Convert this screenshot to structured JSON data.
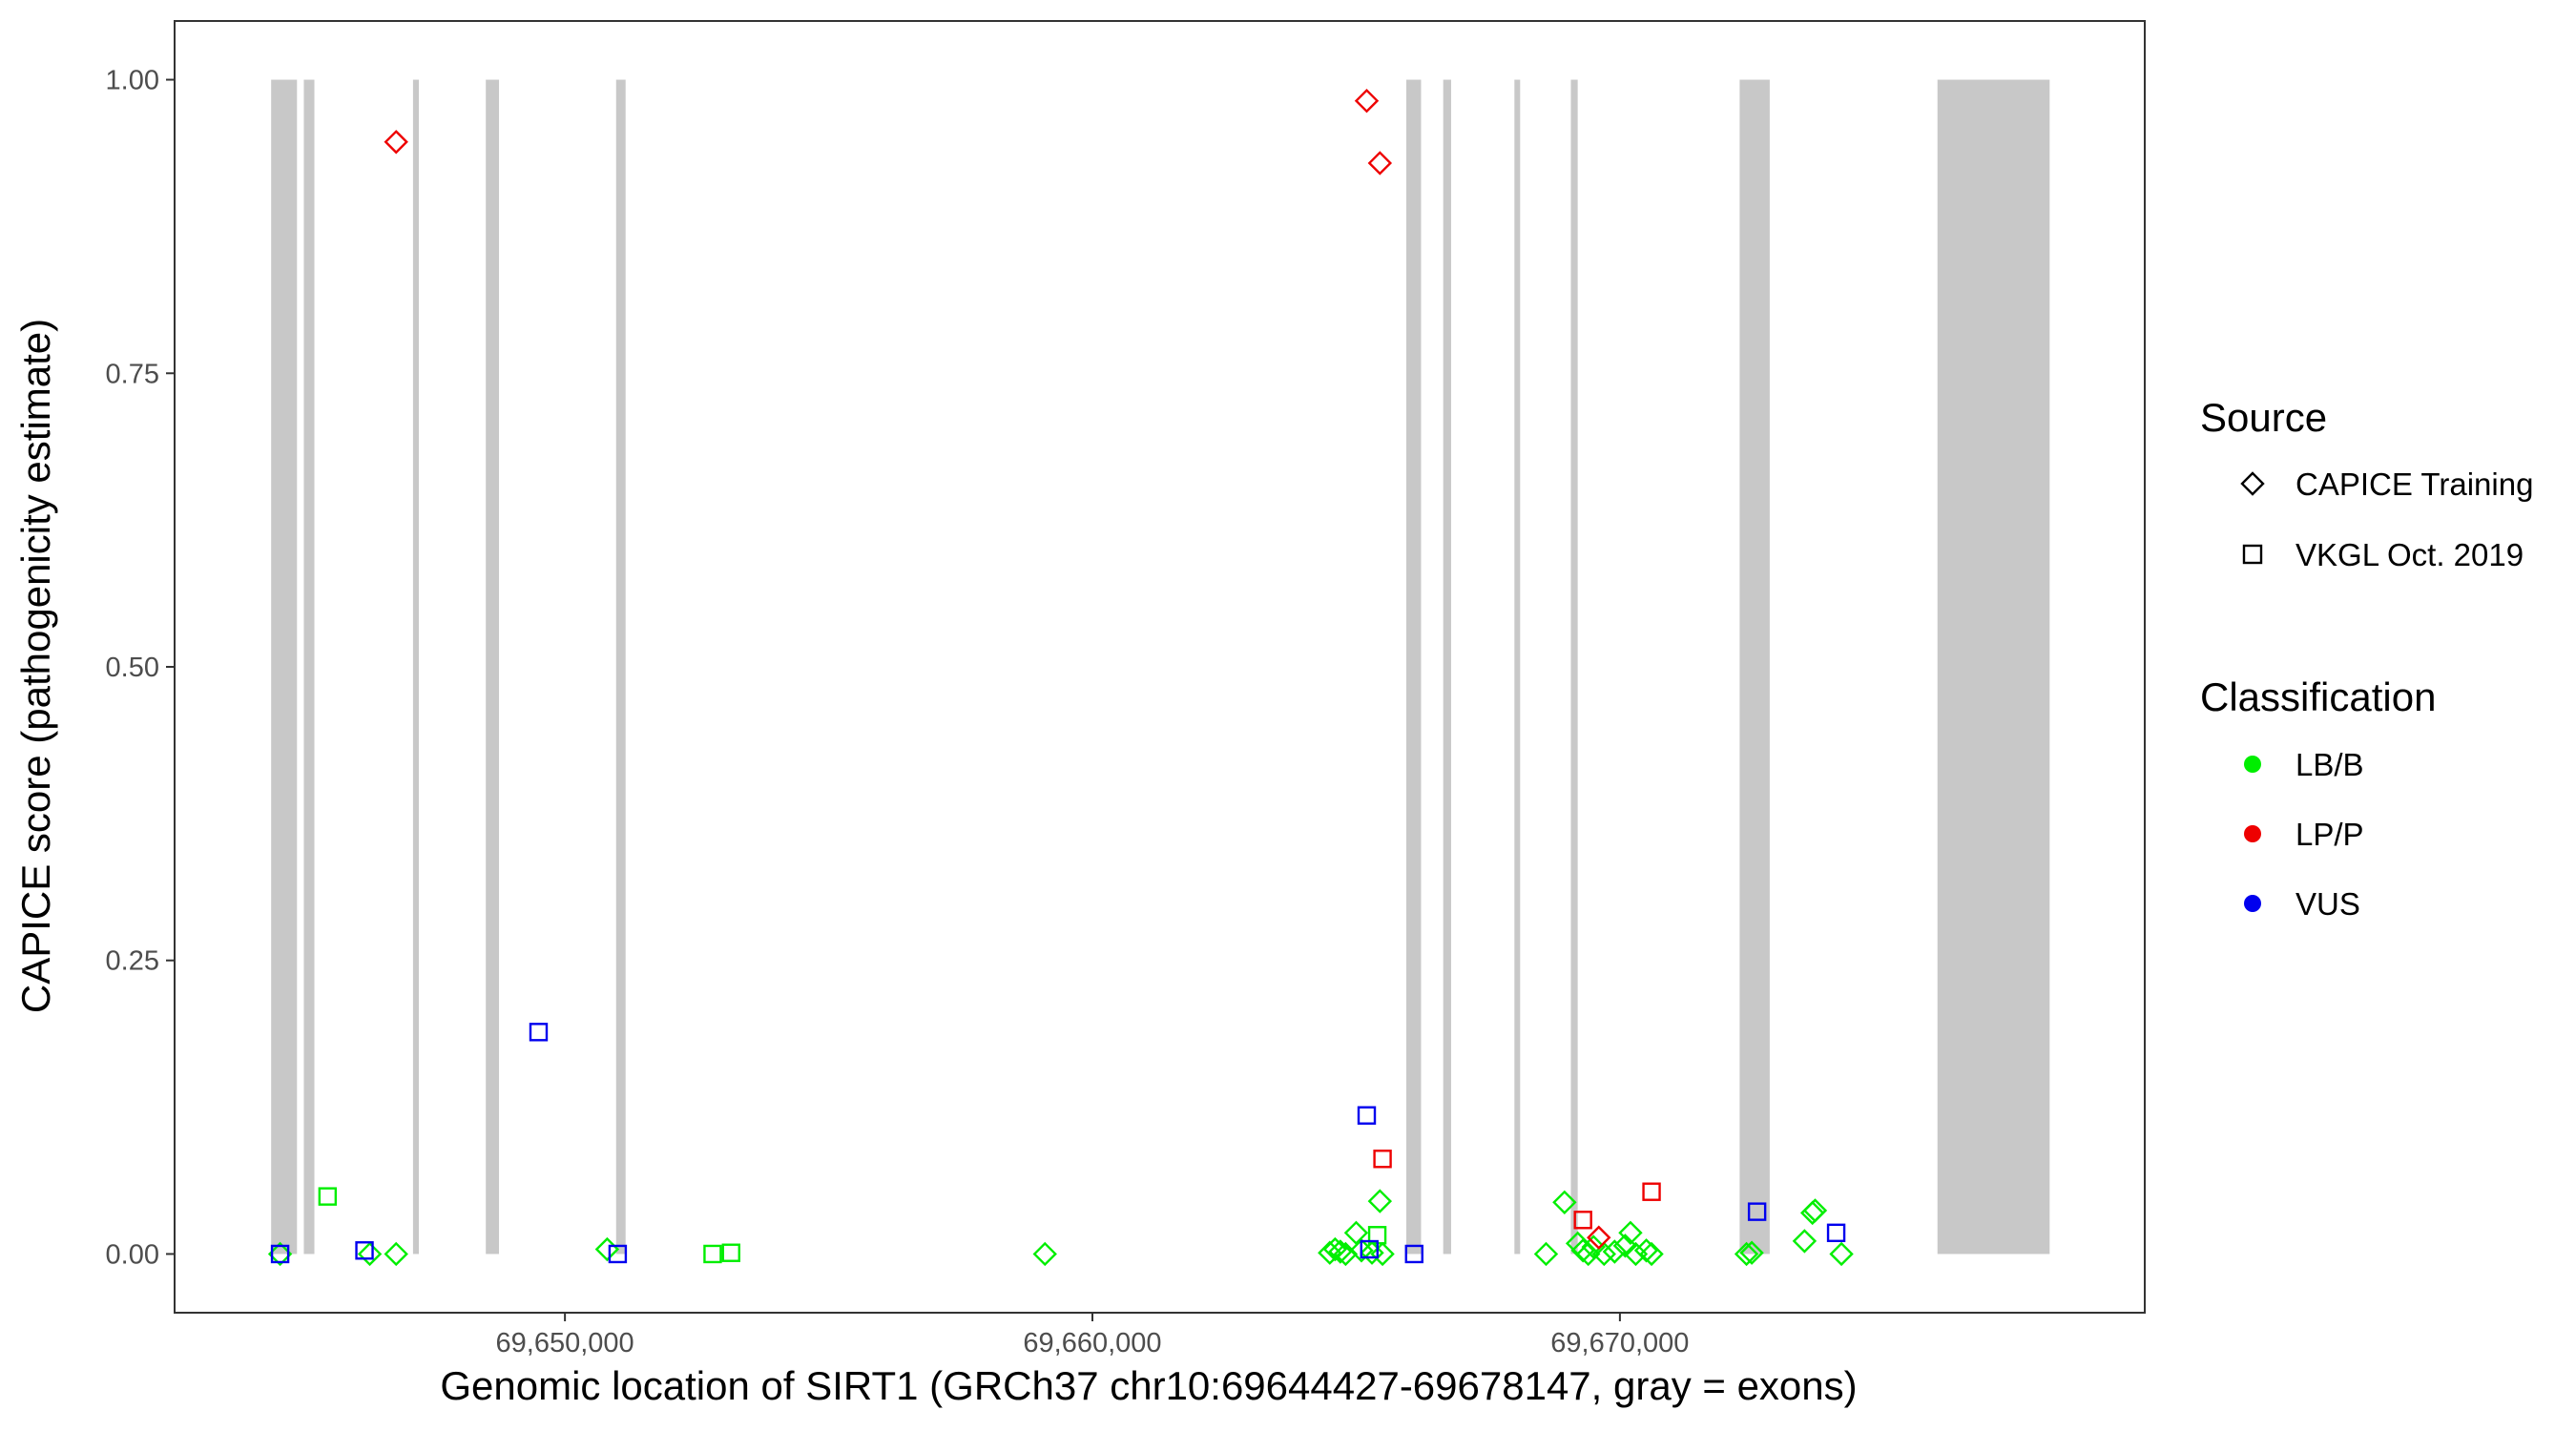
{
  "chart_data": {
    "type": "scatter",
    "title": "",
    "xlabel": "Genomic location of SIRT1 (GRCh37 chr10:69644427-69678147, gray = exons)",
    "ylabel": "CAPICE score (pathogenicity estimate)",
    "xlim": [
      69642600,
      69679950
    ],
    "ylim": [
      -0.05,
      1.05
    ],
    "x_ticks": [
      69650000,
      69660000,
      69670000
    ],
    "x_tick_labels": [
      "69,650,000",
      "69,660,000",
      "69,670,000"
    ],
    "y_ticks": [
      0.0,
      0.25,
      0.5,
      0.75,
      1.0
    ],
    "y_tick_labels": [
      "0.00",
      "0.25",
      "0.50",
      "0.75",
      "1.00"
    ],
    "grid": false,
    "legend_position": "right",
    "exon_color": "#c8c8c8",
    "exons": [
      [
        69644430,
        69644920
      ],
      [
        69645050,
        69645250
      ],
      [
        69647120,
        69647230
      ],
      [
        69648500,
        69648750
      ],
      [
        69650970,
        69651150
      ],
      [
        69665950,
        69666230
      ],
      [
        69666650,
        69666800
      ],
      [
        69668000,
        69668080
      ],
      [
        69669070,
        69669200
      ],
      [
        69672270,
        69672840
      ],
      [
        69676020,
        69678147
      ]
    ],
    "legends": {
      "source": {
        "title": "Source",
        "entries": [
          {
            "label": "CAPICE Training",
            "shape": "diamond"
          },
          {
            "label": "VKGL Oct. 2019",
            "shape": "square"
          }
        ]
      },
      "classification": {
        "title": "Classification",
        "entries": [
          {
            "label": "LB/B",
            "color": "#00ee00"
          },
          {
            "label": "LP/P",
            "color": "#ee0000"
          },
          {
            "label": "VUS",
            "color": "#0000ee"
          }
        ]
      }
    },
    "series": [
      {
        "source": "CAPICE Training",
        "classification": "LB/B",
        "shape": "diamond",
        "color": "#00ee00",
        "points": [
          [
            69644600,
            0.0
          ],
          [
            69646300,
            0.0
          ],
          [
            69646800,
            0.0
          ],
          [
            69650800,
            0.004
          ],
          [
            69659100,
            0.0
          ],
          [
            69664500,
            0.001
          ],
          [
            69664600,
            0.004
          ],
          [
            69664700,
            0.002
          ],
          [
            69664800,
            0.0
          ],
          [
            69665000,
            0.018
          ],
          [
            69665100,
            0.003
          ],
          [
            69665300,
            0.001
          ],
          [
            69665450,
            0.045
          ],
          [
            69665500,
            0.0
          ],
          [
            69668600,
            0.0
          ],
          [
            69668950,
            0.044
          ],
          [
            69669200,
            0.009
          ],
          [
            69669300,
            0.003
          ],
          [
            69669400,
            0.0
          ],
          [
            69669500,
            0.006
          ],
          [
            69669700,
            0.0
          ],
          [
            69669900,
            0.002
          ],
          [
            69670100,
            0.007
          ],
          [
            69670200,
            0.018
          ],
          [
            69670300,
            0.0
          ],
          [
            69670500,
            0.003
          ],
          [
            69670600,
            0.0
          ],
          [
            69672400,
            0.0
          ],
          [
            69672500,
            0.001
          ],
          [
            69673500,
            0.011
          ],
          [
            69673650,
            0.035
          ],
          [
            69673700,
            0.037
          ],
          [
            69674200,
            0.0
          ]
        ]
      },
      {
        "source": "CAPICE Training",
        "classification": "LP/P",
        "shape": "diamond",
        "color": "#ee0000",
        "points": [
          [
            69646800,
            0.947
          ],
          [
            69665200,
            0.982
          ],
          [
            69665450,
            0.929
          ],
          [
            69669600,
            0.014
          ]
        ]
      },
      {
        "source": "VKGL Oct. 2019",
        "classification": "LB/B",
        "shape": "square",
        "color": "#00ee00",
        "points": [
          [
            69645500,
            0.049
          ],
          [
            69652800,
            0.0
          ],
          [
            69653150,
            0.001
          ],
          [
            69665400,
            0.016
          ]
        ]
      },
      {
        "source": "VKGL Oct. 2019",
        "classification": "LP/P",
        "shape": "square",
        "color": "#ee0000",
        "points": [
          [
            69665500,
            0.081
          ],
          [
            69669300,
            0.029
          ],
          [
            69670600,
            0.053
          ]
        ]
      },
      {
        "source": "VKGL Oct. 2019",
        "classification": "VUS",
        "shape": "square",
        "color": "#0000ee",
        "points": [
          [
            69644600,
            0.0
          ],
          [
            69646200,
            0.003
          ],
          [
            69649500,
            0.189
          ],
          [
            69651000,
            0.0
          ],
          [
            69665200,
            0.118
          ],
          [
            69665250,
            0.004
          ],
          [
            69666100,
            0.0
          ],
          [
            69672600,
            0.036
          ],
          [
            69674100,
            0.018
          ]
        ]
      }
    ]
  }
}
